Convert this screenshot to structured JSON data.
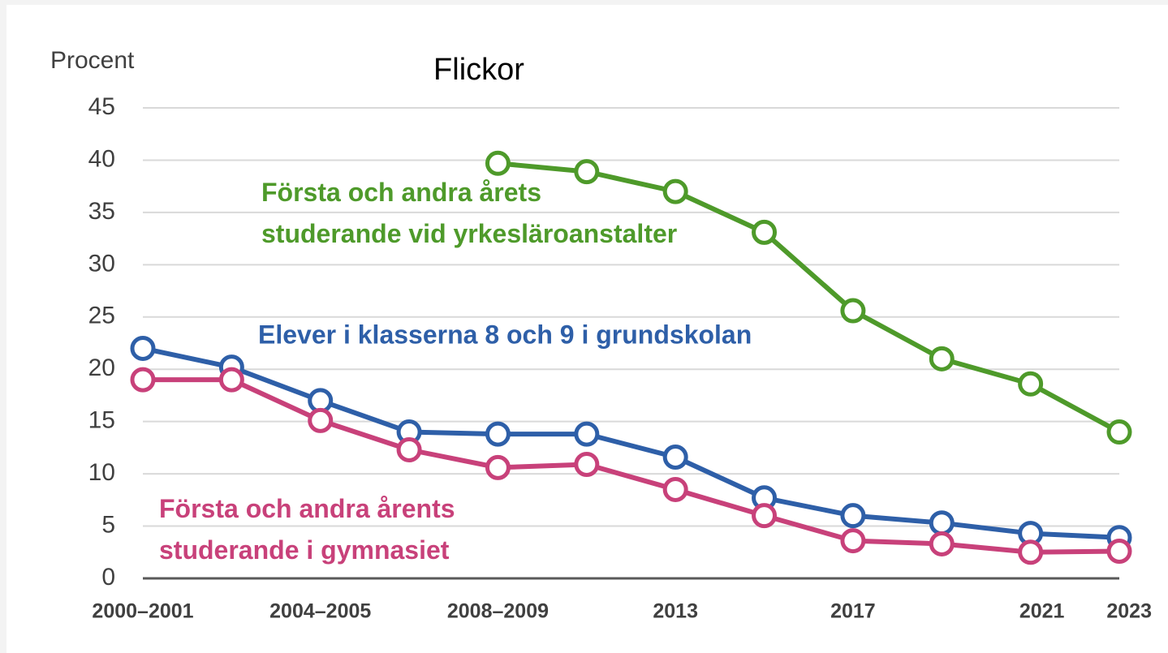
{
  "chart_data": {
    "type": "line",
    "title": "Flickor",
    "y_label": "Procent",
    "categories": [
      "2000–2001",
      null,
      "2004–2005",
      null,
      "2008–2009",
      null,
      "2013",
      null,
      "2017",
      null,
      "2021",
      "2023"
    ],
    "series": [
      {
        "name": "Första och andra årets studerande vid yrkesläroanstalter",
        "color": "#4e9a2a",
        "values": [
          null,
          null,
          null,
          null,
          39.7,
          38.9,
          37,
          33.1,
          25.6,
          21,
          18.6,
          14
        ]
      },
      {
        "name": "Elever i klasserna 8 och 9 i grundskolan",
        "color": "#2e5fa8",
        "values": [
          22,
          20.2,
          17,
          14,
          13.8,
          13.8,
          11.6,
          7.7,
          6,
          5.3,
          4.3,
          3.9
        ]
      },
      {
        "name": "Första och andra årents studerande i gymnasiet",
        "color": "#c8417a",
        "values": [
          19,
          19,
          15.1,
          12.3,
          10.6,
          10.9,
          8.5,
          6,
          3.6,
          3.3,
          2.5,
          2.6
        ]
      }
    ],
    "ylim": [
      0,
      45
    ],
    "yticks": [
      0,
      5,
      10,
      15,
      20,
      25,
      30,
      35,
      40,
      45
    ],
    "grid": true
  }
}
